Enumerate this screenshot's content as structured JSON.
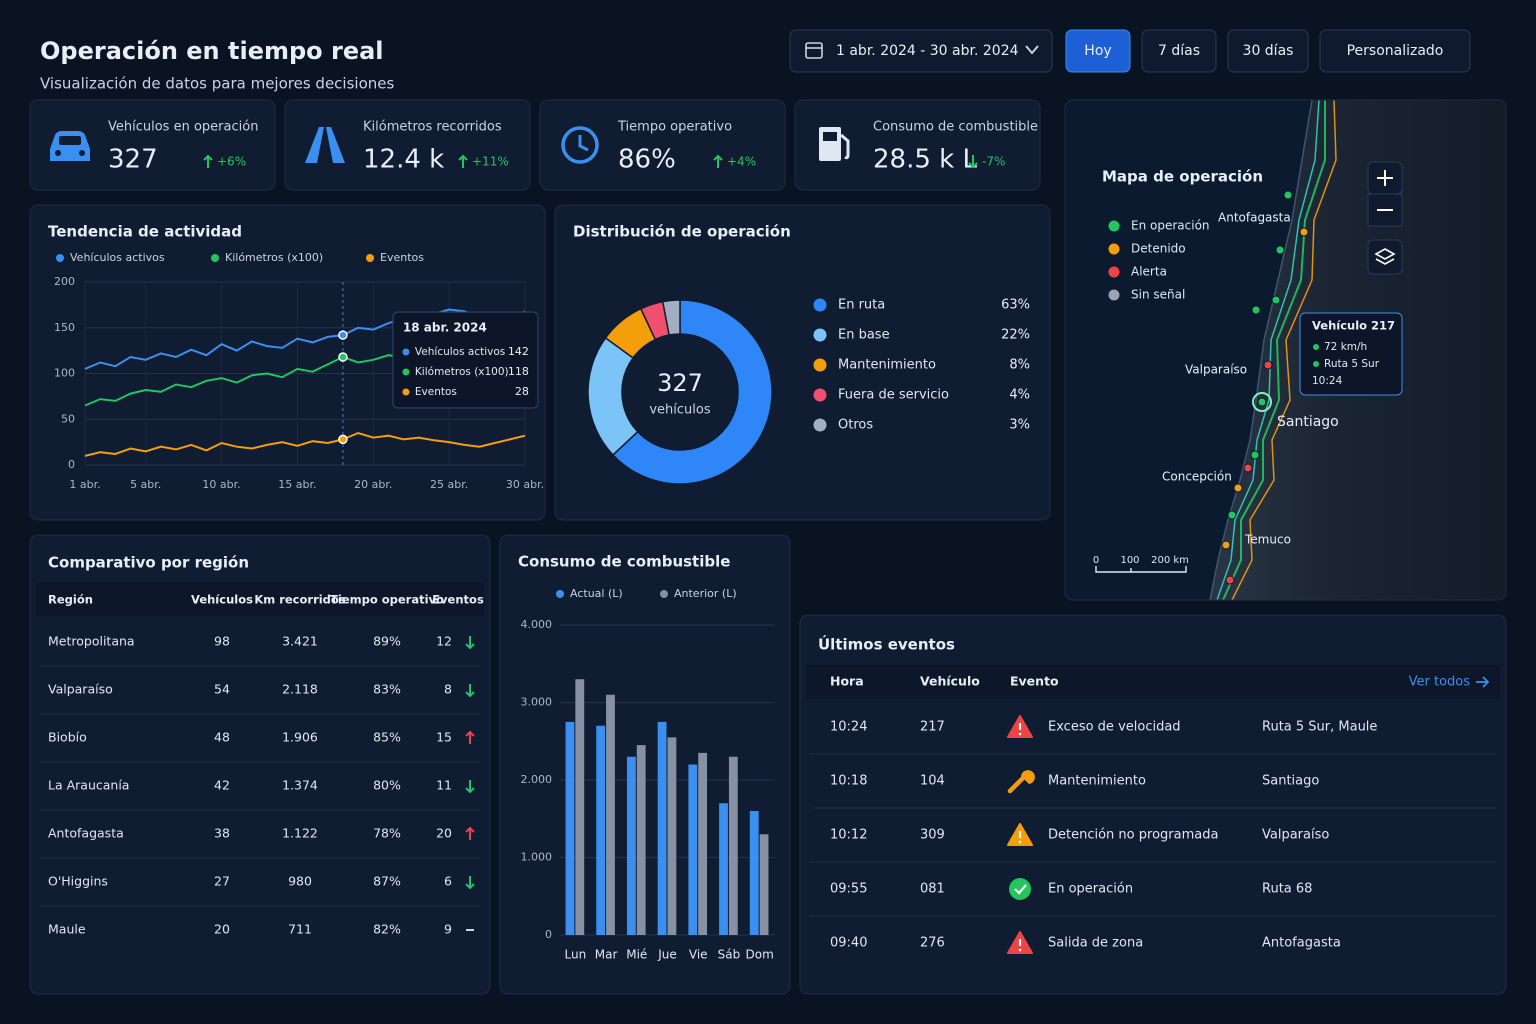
{
  "header": {
    "title": "Operación en tiempo real",
    "subtitle": "Visualización de datos para mejores decisiones",
    "date_range": "1 abr. 2024 - 30 abr. 2024",
    "buttons": [
      {
        "label": "Hoy",
        "active": true
      },
      {
        "label": "7 días",
        "active": false
      },
      {
        "label": "30 días",
        "active": false
      },
      {
        "label": "Personalizado",
        "active": false
      }
    ]
  },
  "kpis": [
    {
      "name": "Vehículos en operación",
      "value": "327",
      "delta": "+6%",
      "trend": "up",
      "icon": "car"
    },
    {
      "name": "Kilómetros recorridos",
      "value": "12.4 k",
      "delta": "+11%",
      "trend": "up",
      "icon": "road"
    },
    {
      "name": "Tiempo operativo",
      "value": "86%",
      "delta": "+4%",
      "trend": "up",
      "icon": "clock"
    },
    {
      "name": "Consumo de combustible",
      "value": "28.5 k L",
      "delta": "-7%",
      "trend": "down",
      "icon": "fuel"
    }
  ],
  "chart_data": [
    {
      "type": "line",
      "title": "Tendencia de actividad",
      "x": [
        1,
        2,
        3,
        4,
        5,
        6,
        7,
        8,
        9,
        10,
        11,
        12,
        13,
        14,
        15,
        16,
        17,
        18,
        19,
        20,
        21,
        22,
        23,
        24,
        25,
        26,
        27,
        28,
        29,
        30
      ],
      "xlim": [
        1,
        30
      ],
      "xticks": [
        {
          "value": 1,
          "label": "1 abr."
        },
        {
          "value": 5,
          "label": "5 abr."
        },
        {
          "value": 10,
          "label": "10 abr."
        },
        {
          "value": 15,
          "label": "15 abr."
        },
        {
          "value": 20,
          "label": "20 abr."
        },
        {
          "value": 25,
          "label": "25 abr."
        },
        {
          "value": 30,
          "label": "30 abr."
        }
      ],
      "ylim": [
        0,
        200
      ],
      "yticks": [
        0,
        50,
        100,
        150,
        200
      ],
      "grid": true,
      "series": [
        {
          "name": "Vehículos activos",
          "color": "#3b8ff0",
          "values": [
            105,
            112,
            108,
            118,
            115,
            122,
            118,
            126,
            120,
            132,
            125,
            135,
            130,
            128,
            138,
            134,
            140,
            142,
            150,
            148,
            155,
            160,
            158,
            165,
            170,
            168,
            162,
            158,
            155,
            168
          ]
        },
        {
          "name": "Kilómetros (x100)",
          "color": "#22c55e",
          "values": [
            65,
            72,
            70,
            78,
            82,
            80,
            88,
            85,
            92,
            95,
            90,
            98,
            100,
            96,
            105,
            102,
            110,
            118,
            112,
            115,
            120,
            118,
            116,
            122,
            125,
            120,
            115,
            110,
            112,
            125
          ]
        },
        {
          "name": "Eventos",
          "color": "#f59e0b",
          "values": [
            10,
            14,
            12,
            18,
            15,
            20,
            17,
            22,
            16,
            24,
            20,
            18,
            22,
            25,
            21,
            26,
            24,
            28,
            35,
            30,
            32,
            28,
            30,
            27,
            25,
            22,
            20,
            24,
            28,
            32
          ]
        }
      ],
      "tooltip": {
        "x": 18,
        "date": "18 abr. 2024"
      }
    },
    {
      "type": "pie",
      "title": "Distribución de operación",
      "categories": [
        "En ruta",
        "En base",
        "Mantenimiento",
        "Fuera de servicio",
        "Otros"
      ],
      "values": [
        63,
        22,
        8,
        4,
        3
      ],
      "value_labels": [
        "63%",
        "22%",
        "8%",
        "4%",
        "3%"
      ],
      "colors": [
        "#2f86f6",
        "#7cc4f8",
        "#f59e0b",
        "#f0506e",
        "#a3aec2"
      ],
      "center_value": "327",
      "center_label": "vehículos"
    },
    {
      "type": "bar",
      "title": "Consumo de combustible",
      "categories": [
        "Lun",
        "Mar",
        "Mié",
        "Jue",
        "Vie",
        "Sáb",
        "Dom"
      ],
      "series": [
        {
          "name": "Actual (L)",
          "color": "#3b8ff0",
          "values": [
            2750,
            2700,
            2300,
            2750,
            2200,
            1700,
            1600
          ]
        },
        {
          "name": "Anterior (L)",
          "color": "#8791a3",
          "values": [
            3300,
            3100,
            2450,
            2550,
            2350,
            2300,
            1300
          ]
        }
      ],
      "ylim": [
        0,
        4000
      ],
      "yticks": [
        0,
        {
          "value": 1000,
          "label": "1.000"
        },
        {
          "value": 2000,
          "label": "2.000"
        },
        {
          "value": 3000,
          "label": "3.000"
        },
        {
          "value": 4000,
          "label": "4.000"
        }
      ],
      "grid": true
    }
  ],
  "region_table": {
    "title": "Comparativo por región",
    "columns": [
      "Región",
      "Vehículos",
      "Km recorridos",
      "Tiempo operativo",
      "Eventos"
    ],
    "rows": [
      [
        "Metropolitana",
        "98",
        "3.421",
        "89%",
        "12"
      ],
      [
        "Valparaíso",
        "54",
        "2.118",
        "83%",
        "8"
      ],
      [
        "Biobío",
        "48",
        "1.906",
        "85%",
        "15"
      ],
      [
        "La Araucanía",
        "42",
        "1.374",
        "80%",
        "11"
      ],
      [
        "Antofagasta",
        "38",
        "1.122",
        "78%",
        "20"
      ],
      [
        "O'Higgins",
        "27",
        "980",
        "87%",
        "6"
      ],
      [
        "Maule",
        "20",
        "711",
        "82%",
        "9"
      ]
    ],
    "trends": [
      "down",
      "down",
      "up",
      "down",
      "up",
      "down",
      "flat"
    ]
  },
  "events": {
    "title": "Últimos eventos",
    "link": "Ver todos",
    "columns": [
      "Hora",
      "Vehículo",
      "Evento"
    ],
    "rows": [
      {
        "time": "10:24",
        "vehicle": "217",
        "event": "Exceso de velocidad",
        "location": "Ruta 5 Sur, Maule",
        "icon": "alert-red"
      },
      {
        "time": "10:18",
        "vehicle": "104",
        "event": "Mantenimiento",
        "location": "Santiago",
        "icon": "tool"
      },
      {
        "time": "10:12",
        "vehicle": "309",
        "event": "Detención no programada",
        "location": "Valparaíso",
        "icon": "alert-orange"
      },
      {
        "time": "09:55",
        "vehicle": "081",
        "event": "En operación",
        "location": "Ruta 68",
        "icon": "ok"
      },
      {
        "time": "09:40",
        "vehicle": "276",
        "event": "Salida de zona",
        "location": "Antofagasta",
        "icon": "alert-red"
      }
    ]
  },
  "map": {
    "title": "Mapa de operación",
    "legend": [
      {
        "label": "En operación",
        "color": "#22c55e"
      },
      {
        "label": "Detenido",
        "color": "#f59e0b"
      },
      {
        "label": "Alerta",
        "color": "#ef4444"
      },
      {
        "label": "Sin señal",
        "color": "#9ca3af"
      }
    ],
    "cities": [
      "Antofagasta",
      "Valparaíso",
      "Santiago",
      "Concepción",
      "Temuco"
    ],
    "tooltip": {
      "title": "Vehículo 217",
      "lines": [
        "72 km/h",
        "Ruta 5 Sur"
      ],
      "time": "10:24"
    },
    "scale": [
      "0",
      "100",
      "200 km"
    ]
  }
}
